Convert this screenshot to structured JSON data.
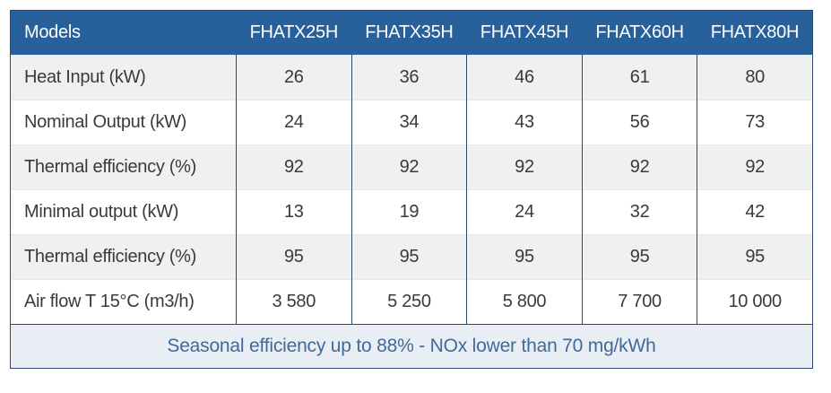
{
  "table": {
    "header": {
      "label": "Models",
      "models": [
        "FHATX25H",
        "FHATX35H",
        "FHATX45H",
        "FHATX60H",
        "FHATX80H"
      ]
    },
    "rows": [
      {
        "label": "Heat Input (kW)",
        "values": [
          "26",
          "36",
          "46",
          "61",
          "80"
        ]
      },
      {
        "label": "Nominal Output (kW)",
        "values": [
          "24",
          "34",
          "43",
          "56",
          "73"
        ]
      },
      {
        "label": "Thermal efficiency (%)",
        "values": [
          "92",
          "92",
          "92",
          "92",
          "92"
        ]
      },
      {
        "label": "Minimal output (kW)",
        "values": [
          "13",
          "19",
          "24",
          "32",
          "42"
        ]
      },
      {
        "label": "Thermal efficiency (%)",
        "values": [
          "95",
          "95",
          "95",
          "95",
          "95"
        ]
      },
      {
        "label": "Air flow T 15°C (m3/h)",
        "values": [
          "3 580",
          "5 250",
          "5 800",
          "7 700",
          "10 000"
        ]
      }
    ],
    "footer": "Seasonal efficiency up to 88% - NOx lower than 70 mg/kWh"
  },
  "colors": {
    "header_bg": "#27609a",
    "header_text": "#ffffff",
    "border": "#2b4a6e",
    "row_shade": "#eef0f2",
    "footer_bg": "#e9eef4",
    "footer_text": "#3f6a99"
  }
}
